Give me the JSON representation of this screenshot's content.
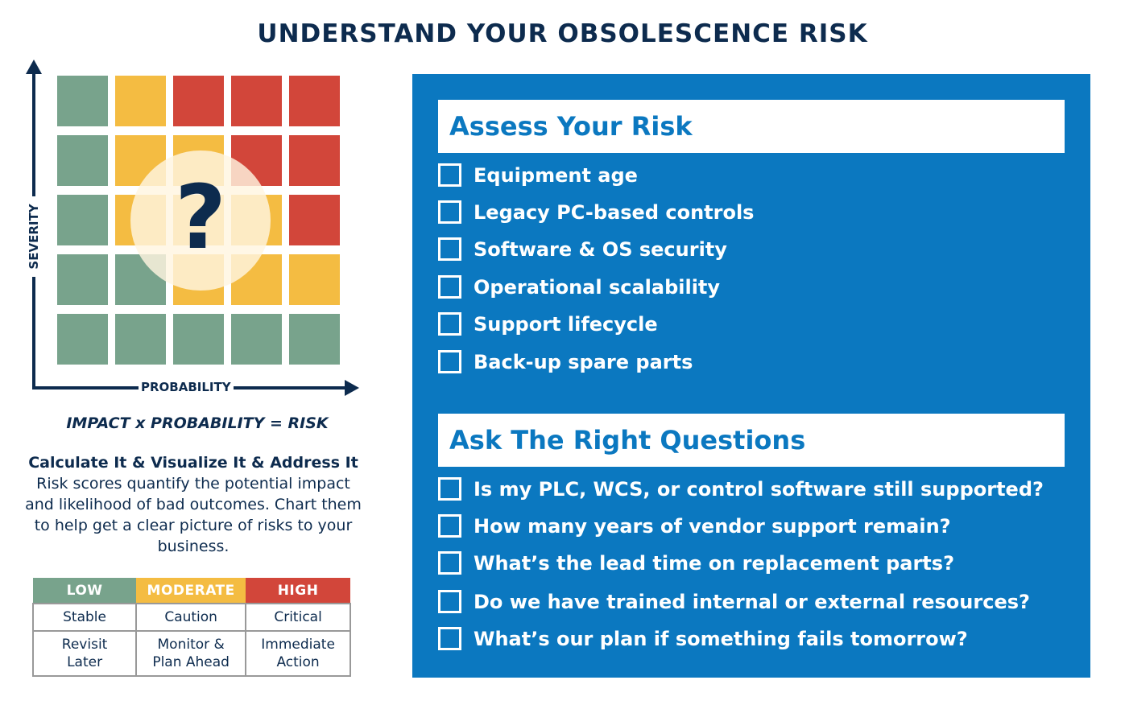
{
  "title": "UNDERSTAND YOUR OBSOLESCENCE RISK",
  "matrix": {
    "y_axis": "SEVERITY",
    "x_axis": "PROBABILITY",
    "center_symbol": "?",
    "colors": {
      "low": "#78a38c",
      "moderate": "#f4bc42",
      "high": "#d2463a"
    },
    "rows": [
      [
        "low",
        "moderate",
        "high",
        "high",
        "high"
      ],
      [
        "low",
        "moderate",
        "moderate",
        "high",
        "high"
      ],
      [
        "low",
        "moderate",
        "moderate",
        "moderate",
        "high"
      ],
      [
        "low",
        "low",
        "moderate",
        "moderate",
        "moderate"
      ],
      [
        "low",
        "low",
        "low",
        "low",
        "low"
      ]
    ]
  },
  "formula": "IMPACT x PROBABILITY = RISK",
  "calc": {
    "heading": "Calculate It & Visualize It & Address It",
    "body": "Risk scores quantify the potential impact and likelihood of bad outcomes. Chart them to help get a clear picture of risks to your business."
  },
  "legend": {
    "headers": [
      "LOW",
      "MODERATE",
      "HIGH"
    ],
    "status": [
      "Stable",
      "Caution",
      "Critical"
    ],
    "action": [
      "Revisit Later",
      "Monitor & Plan Ahead",
      "Immediate Action"
    ]
  },
  "assess": {
    "title": "Assess Your Risk",
    "items": [
      "Equipment age",
      "Legacy PC-based controls",
      "Software & OS security",
      "Operational scalability",
      "Support lifecycle",
      "Back-up spare parts"
    ]
  },
  "questions": {
    "title": "Ask The Right Questions",
    "items": [
      "Is my PLC, WCS, or control software still supported?",
      "How many years of vendor support remain?",
      "What’s the lead time on replacement parts?",
      "Do we have trained internal or external resources?",
      "What’s our plan if something fails tomorrow?"
    ]
  }
}
